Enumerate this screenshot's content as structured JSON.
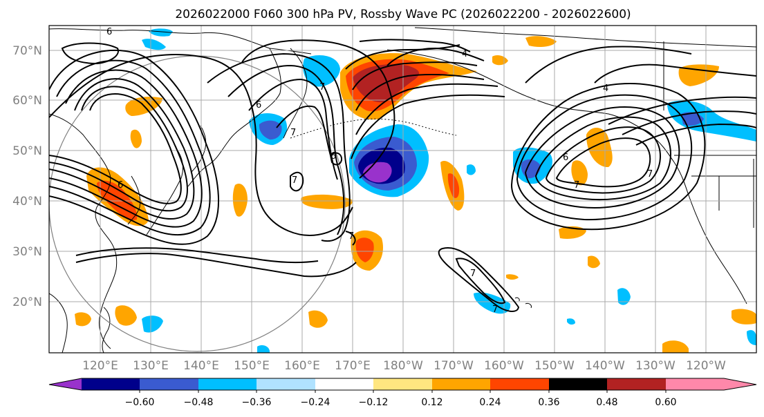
{
  "title": "2026022000 F060 300 hPa PV, Rossby Wave PC (2026022200 - 2026022600)",
  "lat_labels": [
    "70°N",
    "60°N",
    "50°N",
    "40°N",
    "30°N",
    "20°N"
  ],
  "lon_labels": [
    "120°E",
    "130°E",
    "140°E",
    "150°E",
    "160°E",
    "170°E",
    "180°W",
    "170°W",
    "160°W",
    "150°W",
    "140°W",
    "130°W",
    "120°W"
  ],
  "colorbar": {
    "ticks": [
      "−0.60",
      "−0.48",
      "−0.36",
      "−0.24",
      "−0.12",
      "0.12",
      "0.24",
      "0.36",
      "0.48",
      "0.60"
    ],
    "colors": [
      "#9932cc",
      "#00008b",
      "#3a5bd0",
      "#00bfff",
      "#b0e2ff",
      "#ffffff",
      "#ffe680",
      "#ffa500",
      "#ff4500",
      "#b22222",
      "#ff88aa"
    ]
  },
  "contour_labels": [
    "6",
    "7",
    "6",
    "7",
    "6",
    "7",
    "7",
    "6",
    "4",
    "6",
    "7",
    "4",
    "7",
    "7",
    "7"
  ]
}
